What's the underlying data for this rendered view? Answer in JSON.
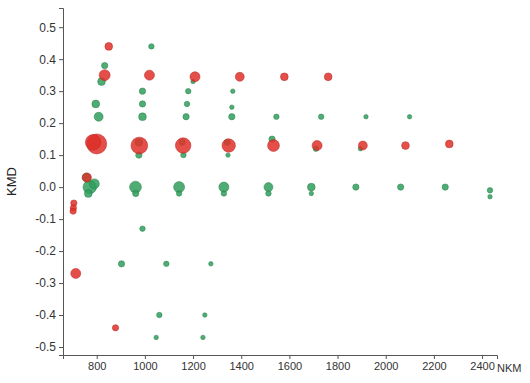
{
  "chart_data": {
    "type": "scatter",
    "x_label": "NKM",
    "y_label": "KMD",
    "xlim": [
      660,
      2462
    ],
    "ylim": [
      -0.525,
      0.56
    ],
    "xticks": [
      800,
      1000,
      1200,
      1400,
      1600,
      1800,
      2000,
      2200,
      2400
    ],
    "yticks": [
      -0.5,
      -0.4,
      -0.3,
      -0.2,
      -0.1,
      {
        "value": 0,
        "label": "0.0"
      },
      0.1,
      0.2,
      0.3,
      0.4,
      0.5
    ],
    "grid": false,
    "series": [
      {
        "color": "#2f9e5c",
        "x": [
          771,
          790,
          961,
          1142,
          1328,
          1513,
          1691,
          1876,
          2062,
          2247,
          2433,
          758,
          765,
          962,
          1142,
          1328,
          1513,
          1691,
          2433,
          790,
          975,
          1155,
          1342,
          1528,
          1710,
          1895,
          975,
          1160,
          1345,
          808,
          990,
          1171,
          1361,
          1546,
          1732,
          1918,
          2099,
          796,
          990,
          1175,
          1361,
          820,
          990,
          1180,
          1365,
          1200,
          833,
          1027,
          990,
          903,
          1089,
          1274,
          1060,
          1249,
          1047,
          1241
        ],
        "values": [
          0.0,
          0.01,
          0.0,
          0.0,
          0.0,
          0.0,
          0.0,
          0.0,
          0.0,
          0.0,
          -0.01,
          0.03,
          -0.02,
          -0.02,
          -0.02,
          -0.02,
          -0.02,
          -0.02,
          -0.03,
          0.14,
          0.14,
          0.14,
          0.14,
          0.15,
          0.12,
          0.12,
          0.1,
          0.1,
          0.1,
          0.22,
          0.22,
          0.22,
          0.22,
          0.22,
          0.22,
          0.22,
          0.22,
          0.26,
          0.26,
          0.26,
          0.25,
          0.33,
          0.3,
          0.3,
          0.3,
          0.33,
          0.38,
          0.44,
          -0.13,
          -0.24,
          -0.24,
          -0.24,
          -0.4,
          -0.4,
          -0.47,
          -0.47
        ],
        "sizes": [
          9,
          5,
          7,
          6,
          5,
          4,
          3,
          2,
          2,
          2,
          1.5,
          4,
          3,
          2,
          1.5,
          1.5,
          1.5,
          1,
          1,
          6,
          3,
          2,
          2,
          2,
          1.5,
          1,
          2,
          1.5,
          1,
          4,
          3,
          2,
          2,
          1.5,
          1.5,
          1,
          1,
          3,
          2,
          1.5,
          1,
          3,
          2,
          1.5,
          1,
          1,
          2,
          1.5,
          1.5,
          2,
          1.5,
          1,
          1.5,
          1,
          1,
          1
        ]
      },
      {
        "color": "#e0302a",
        "x": [
          800,
          785,
          977,
          1159,
          1348,
          1534,
          1715,
          1905,
          2082,
          2264,
          833,
          1019,
          1208,
          1394,
          1579,
          1761,
          850,
          759,
          705,
          703,
          702,
          713,
          878
        ],
        "values": [
          0.135,
          0.14,
          0.13,
          0.13,
          0.13,
          0.13,
          0.13,
          0.13,
          0.13,
          0.135,
          0.35,
          0.35,
          0.345,
          0.345,
          0.345,
          0.345,
          0.44,
          0.03,
          -0.05,
          -0.065,
          -0.075,
          -0.27,
          -0.44
        ],
        "sizes": [
          20,
          12,
          14,
          12,
          9,
          7,
          5,
          4,
          3,
          3,
          6,
          5,
          5,
          4,
          3,
          3,
          3,
          4,
          2,
          2,
          2,
          5,
          2
        ]
      }
    ]
  }
}
